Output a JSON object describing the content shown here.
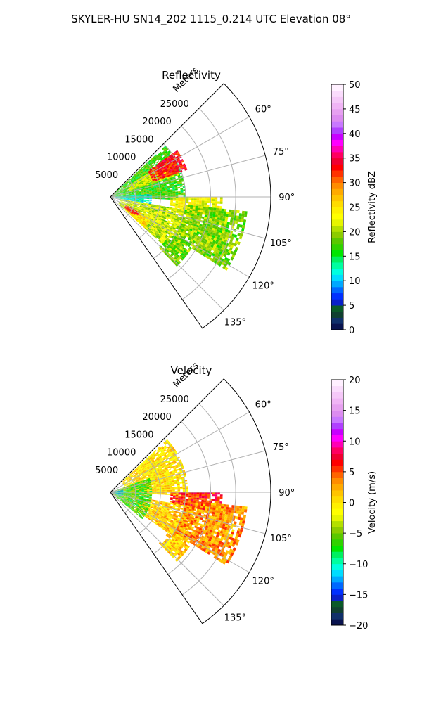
{
  "figure_title": "SKYLER-HU  SN14_202  1115_0.214 UTC Elevation 08°",
  "chart_data": [
    {
      "type": "heatmap",
      "projection": "polar-sector",
      "title": "Reflectivity",
      "range_label": "Meters",
      "range_ticks": [
        "5000",
        "10000",
        "15000",
        "20000",
        "25000"
      ],
      "range_tick_values": [
        5000,
        10000,
        15000,
        20000,
        25000
      ],
      "range_max": 32000,
      "azimuth_range_deg": [
        45,
        145
      ],
      "azimuth_ticks": [
        "60°",
        "75°",
        "90°",
        "105°",
        "120°",
        "135°"
      ],
      "azimuth_tick_values": [
        60,
        75,
        90,
        105,
        120,
        135
      ],
      "grid": true,
      "colorbar": {
        "label": "Reflectivity dBZ",
        "min": 0,
        "max": 50,
        "ticks": [
          "0",
          "5",
          "10",
          "15",
          "20",
          "25",
          "30",
          "35",
          "40",
          "45",
          "50"
        ],
        "tick_values": [
          0,
          5,
          10,
          15,
          20,
          25,
          30,
          35,
          40,
          45,
          50
        ],
        "colors": [
          "#0a1450",
          "#10306a",
          "#104030",
          "#0a5a28",
          "#0a20c8",
          "#0030ff",
          "#0068ff",
          "#00a8ff",
          "#00dcff",
          "#00ffe0",
          "#00ffa0",
          "#00f060",
          "#00e600",
          "#30d200",
          "#5ac800",
          "#8ccc00",
          "#b4e000",
          "#e6f500",
          "#ffff00",
          "#fff000",
          "#ffdc00",
          "#ffc400",
          "#ffaa00",
          "#ff8c00",
          "#ff6400",
          "#ff3200",
          "#ff0000",
          "#f00030",
          "#ff0060",
          "#ff00b4",
          "#ff00ff",
          "#c800ff",
          "#b040ff",
          "#c878ff",
          "#dc8cf0",
          "#e6a0f0",
          "#f0b4f5",
          "#f5c8f8",
          "#fadcfc",
          "#fff0ff"
        ]
      },
      "data_regions": [
        {
          "az": [
            47,
            92
          ],
          "r": [
            0,
            15000
          ],
          "value": 17
        },
        {
          "az": [
            58,
            72
          ],
          "r": [
            4000,
            14000
          ],
          "value": 22
        },
        {
          "az": [
            86,
            100
          ],
          "r": [
            1000,
            8000
          ],
          "value": 12
        },
        {
          "az": [
            90,
            100
          ],
          "r": [
            12000,
            22000
          ],
          "value": 23
        },
        {
          "az": [
            100,
            132
          ],
          "r": [
            2000,
            17000
          ],
          "value": 21
        },
        {
          "az": [
            118,
            132
          ],
          "r": [
            4000,
            9000
          ],
          "value": 25
        },
        {
          "az": [
            96,
            122
          ],
          "r": [
            15000,
            27000
          ],
          "value": 19
        },
        {
          "az": [
            122,
            136
          ],
          "r": [
            14000,
            19000
          ],
          "value": 19
        },
        {
          "az": [
            55,
            70
          ],
          "r": [
            9000,
            16000
          ],
          "value": 33
        },
        {
          "az": [
            118,
            128
          ],
          "r": [
            3500,
            6500
          ],
          "value": 33
        }
      ]
    },
    {
      "type": "heatmap",
      "projection": "polar-sector",
      "title": "Velocity",
      "range_label": "Meters",
      "range_ticks": [
        "5000",
        "10000",
        "15000",
        "20000",
        "25000"
      ],
      "range_tick_values": [
        5000,
        10000,
        15000,
        20000,
        25000
      ],
      "range_max": 32000,
      "azimuth_range_deg": [
        45,
        145
      ],
      "azimuth_ticks": [
        "60°",
        "75°",
        "90°",
        "105°",
        "120°",
        "135°"
      ],
      "azimuth_tick_values": [
        60,
        75,
        90,
        105,
        120,
        135
      ],
      "grid": true,
      "colorbar": {
        "label": "Velocity (m/s)",
        "min": -20,
        "max": 20,
        "ticks": [
          "−20",
          "−15",
          "−10",
          "−5",
          "0",
          "5",
          "10",
          "15",
          "20"
        ],
        "tick_values": [
          -20,
          -15,
          -10,
          -5,
          0,
          5,
          10,
          15,
          20
        ],
        "colors": [
          "#0a1450",
          "#10306a",
          "#104030",
          "#0a5a28",
          "#0a20c8",
          "#0030ff",
          "#0068ff",
          "#00a8ff",
          "#00dcff",
          "#00ffe0",
          "#00ffa0",
          "#00f060",
          "#00e600",
          "#30d200",
          "#5ac800",
          "#8ccc00",
          "#b4e000",
          "#e6f500",
          "#ffff00",
          "#fff000",
          "#ffdc00",
          "#ffc400",
          "#ffaa00",
          "#ff8c00",
          "#ff6400",
          "#ff3200",
          "#ff0000",
          "#f00030",
          "#ff0060",
          "#ff00b4",
          "#ff00ff",
          "#c800ff",
          "#b040ff",
          "#c878ff",
          "#dc8cf0",
          "#e6a0f0",
          "#f0b4f5",
          "#f5c8f8",
          "#fadcfc",
          "#fff0ff"
        ]
      },
      "data_regions": [
        {
          "az": [
            47,
            92
          ],
          "r": [
            3000,
            15000
          ],
          "value": 0
        },
        {
          "az": [
            90,
            100
          ],
          "r": [
            12000,
            22000
          ],
          "value": 6
        },
        {
          "az": [
            100,
            125
          ],
          "r": [
            6000,
            17000
          ],
          "value": 1
        },
        {
          "az": [
            96,
            122
          ],
          "r": [
            15000,
            27000
          ],
          "value": 3
        },
        {
          "az": [
            122,
            136
          ],
          "r": [
            14000,
            19000
          ],
          "value": 1
        },
        {
          "az": [
            70,
            130
          ],
          "r": [
            0,
            8000
          ],
          "value": -6
        },
        {
          "az": [
            80,
            110
          ],
          "r": [
            0,
            2500
          ],
          "value": -11
        }
      ]
    }
  ]
}
